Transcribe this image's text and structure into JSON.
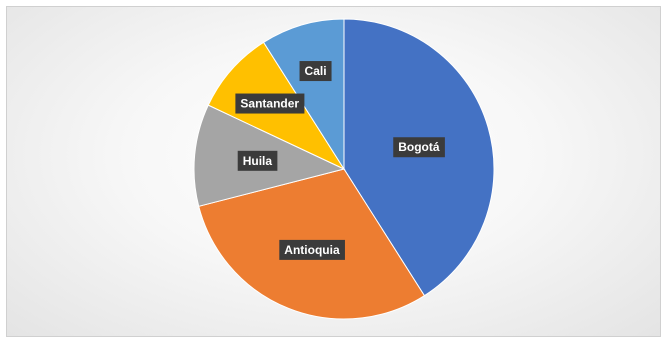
{
  "chart_data": {
    "type": "pie",
    "categories": [
      "Bogotá",
      "Antioquia",
      "Huila",
      "Santander",
      "Cali"
    ],
    "values": [
      41,
      30,
      11,
      9,
      9
    ],
    "colors": [
      "#4472c4",
      "#ed7d31",
      "#a5a5a5",
      "#ffc000",
      "#5b9bd5"
    ],
    "start_angle_deg": 0,
    "direction": "clockwise",
    "data_labels": "category-name",
    "legend": "none"
  }
}
